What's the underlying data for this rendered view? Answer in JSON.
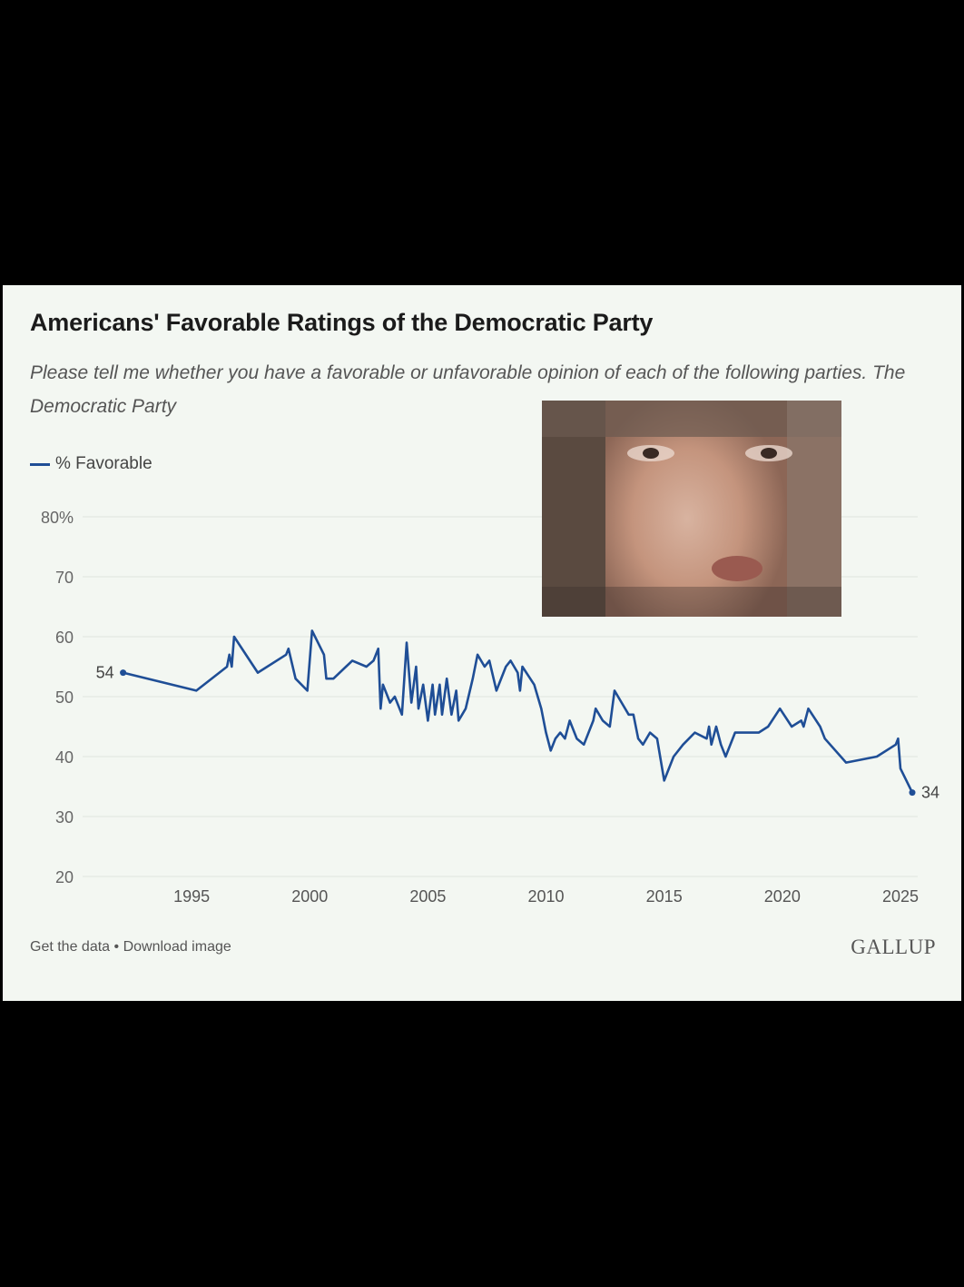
{
  "header": {
    "title": "Americans' Favorable Ratings of the Democratic Party",
    "subtitle": "Please tell me whether you have a favorable or unfavorable opinion of each of the following parties. The Democratic Party"
  },
  "legend": {
    "label": "% Favorable",
    "color": "#1f4e96"
  },
  "footer": {
    "get_data": "Get the data",
    "separator": "•",
    "download": "Download image",
    "brand": "GALLUP"
  },
  "photo": {
    "icon": "person-photo"
  },
  "chart_data": {
    "type": "line",
    "title": "Americans' Favorable Ratings of the Democratic Party",
    "xlabel": "",
    "ylabel": "",
    "xlim": [
      1992,
      2025.5
    ],
    "ylim": [
      20,
      80
    ],
    "yticks": [
      20,
      30,
      40,
      50,
      60,
      70,
      80
    ],
    "ytick_labels": [
      "20",
      "30",
      "40",
      "50",
      "60",
      "70",
      "80%"
    ],
    "xticks": [
      "1995",
      "2000",
      "2005",
      "2010",
      "2015",
      "2020",
      "2025"
    ],
    "grid": true,
    "legend": "top-left",
    "series": [
      {
        "name": "% Favorable",
        "color": "#1f4e96",
        "start_label": "54",
        "end_label": "34",
        "points": [
          [
            1992.1,
            54
          ],
          [
            1995.2,
            51
          ],
          [
            1996.5,
            55
          ],
          [
            1996.6,
            57
          ],
          [
            1996.7,
            55
          ],
          [
            1996.8,
            60
          ],
          [
            1997.8,
            54
          ],
          [
            1999.0,
            57
          ],
          [
            1999.1,
            58
          ],
          [
            1999.4,
            53
          ],
          [
            1999.9,
            51
          ],
          [
            2000.1,
            61
          ],
          [
            2000.6,
            57
          ],
          [
            2000.7,
            53
          ],
          [
            2001.0,
            53
          ],
          [
            2001.8,
            56
          ],
          [
            2002.4,
            55
          ],
          [
            2002.7,
            56
          ],
          [
            2002.9,
            58
          ],
          [
            2003.0,
            48
          ],
          [
            2003.1,
            52
          ],
          [
            2003.4,
            49
          ],
          [
            2003.6,
            50
          ],
          [
            2003.9,
            47
          ],
          [
            2004.1,
            59
          ],
          [
            2004.3,
            49
          ],
          [
            2004.5,
            55
          ],
          [
            2004.6,
            48
          ],
          [
            2004.8,
            52
          ],
          [
            2005.0,
            46
          ],
          [
            2005.2,
            52
          ],
          [
            2005.3,
            47
          ],
          [
            2005.5,
            52
          ],
          [
            2005.6,
            47
          ],
          [
            2005.8,
            53
          ],
          [
            2006.0,
            47
          ],
          [
            2006.2,
            51
          ],
          [
            2006.3,
            46
          ],
          [
            2006.6,
            48
          ],
          [
            2006.9,
            53
          ],
          [
            2007.1,
            57
          ],
          [
            2007.4,
            55
          ],
          [
            2007.6,
            56
          ],
          [
            2007.9,
            51
          ],
          [
            2008.3,
            55
          ],
          [
            2008.5,
            56
          ],
          [
            2008.8,
            54
          ],
          [
            2008.9,
            51
          ],
          [
            2009.0,
            55
          ],
          [
            2009.5,
            52
          ],
          [
            2009.8,
            48
          ],
          [
            2010.0,
            44
          ],
          [
            2010.2,
            41
          ],
          [
            2010.4,
            43
          ],
          [
            2010.6,
            44
          ],
          [
            2010.8,
            43
          ],
          [
            2011.0,
            46
          ],
          [
            2011.3,
            43
          ],
          [
            2011.6,
            42
          ],
          [
            2012.0,
            46
          ],
          [
            2012.1,
            48
          ],
          [
            2012.4,
            46
          ],
          [
            2012.7,
            45
          ],
          [
            2012.9,
            51
          ],
          [
            2013.2,
            49
          ],
          [
            2013.5,
            47
          ],
          [
            2013.7,
            47
          ],
          [
            2013.9,
            43
          ],
          [
            2014.1,
            42
          ],
          [
            2014.4,
            44
          ],
          [
            2014.7,
            43
          ],
          [
            2015.0,
            36
          ],
          [
            2015.4,
            40
          ],
          [
            2015.8,
            42
          ],
          [
            2016.3,
            44
          ],
          [
            2016.8,
            43
          ],
          [
            2016.9,
            45
          ],
          [
            2017.0,
            42
          ],
          [
            2017.2,
            45
          ],
          [
            2017.4,
            42
          ],
          [
            2017.6,
            40
          ],
          [
            2018.0,
            44
          ],
          [
            2019.0,
            44
          ],
          [
            2019.4,
            45
          ],
          [
            2019.9,
            48
          ],
          [
            2020.4,
            45
          ],
          [
            2020.8,
            46
          ],
          [
            2020.9,
            45
          ],
          [
            2021.1,
            48
          ],
          [
            2021.6,
            45
          ],
          [
            2021.8,
            43
          ],
          [
            2022.7,
            39
          ],
          [
            2024.0,
            40
          ],
          [
            2024.8,
            42
          ],
          [
            2024.9,
            43
          ],
          [
            2025.0,
            38
          ],
          [
            2025.5,
            34
          ]
        ]
      }
    ]
  }
}
